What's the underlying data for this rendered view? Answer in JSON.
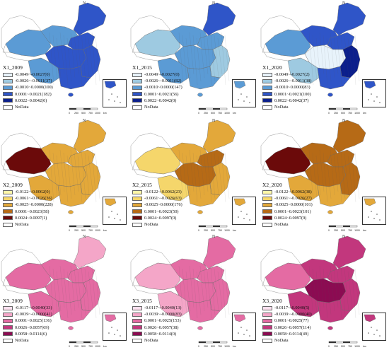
{
  "panels": [
    {
      "title": "X1_2009",
      "legend": [
        "-0.0049~-0.0027(0)",
        "-0.0026~-0.0011(37)",
        "-0.0010~0.0000(100)",
        "0.0001~0.0021(182)",
        "0.0022~0.0042(0)",
        "NoData"
      ],
      "colors": [
        "#e8f3fb",
        "#9ecae1",
        "#5b9bd5",
        "#2f55c8",
        "#0b1f8c",
        "#ffffff"
      ],
      "fill_levels": {
        "ne": 3,
        "north": 3,
        "east": 3,
        "south": 3,
        "central": 3,
        "sw": 2,
        "nw": 2,
        "inner": 2
      }
    },
    {
      "title": "X1_2015",
      "legend": [
        "-0.0049~-0.0027(0)",
        "-0.0026~-0.0011(82)",
        "-0.0010~0.0000(147)",
        "0.0001~0.0021(56)",
        "0.0022~0.0042(0)",
        "NoData"
      ],
      "colors": [
        "#e8f3fb",
        "#9ecae1",
        "#5b9bd5",
        "#2f55c8",
        "#0b1f8c",
        "#ffffff"
      ],
      "fill_levels": {
        "ne": 3,
        "north": 2,
        "east": 1,
        "south": 2,
        "central": 2,
        "sw": 2,
        "nw": 1,
        "inner": 2
      }
    },
    {
      "title": "X1_2020",
      "legend": [
        "-0.0049~-0.0027(2)",
        "-0.0026~-0.0011(38)",
        "-0.0010~0.0000(83)",
        "0.0001~0.0021(100)",
        "0.0022~0.0042(37)",
        "NoData"
      ],
      "colors": [
        "#e8f3fb",
        "#9ecae1",
        "#5b9bd5",
        "#2f55c8",
        "#0b1f8c",
        "#ffffff"
      ],
      "fill_levels": {
        "ne": 3,
        "north": 3,
        "east": 4,
        "south": 3,
        "central": 0,
        "sw": 1,
        "nw": 2,
        "inner": 3
      }
    },
    {
      "title": "X2_2009",
      "legend": [
        "-0.0122~-0.0062(0)",
        "-0.0061~-0.0026(36)",
        "-0.0025~0.0000(228)",
        "0.0001~0.0023(58)",
        "0.0024~0.0097(1)",
        "NoData"
      ],
      "colors": [
        "#fff7a8",
        "#f5d66b",
        "#e3a83a",
        "#b66a16",
        "#6b0a0a",
        "#ffffff"
      ],
      "fill_levels": {
        "ne": 2,
        "north": 2,
        "east": 2,
        "south": 2,
        "central": 2,
        "sw": 2,
        "nw": 4,
        "inner": 2
      }
    },
    {
      "title": "X2_2015",
      "legend": [
        "-0.0122~-0.0062(23)",
        "-0.0061~-0.0026(63)",
        "-0.0025~0.0000(176)",
        "0.0001~0.0023(50)",
        "0.0024~0.0097(0)",
        "NoData"
      ],
      "colors": [
        "#fff7a8",
        "#f5d66b",
        "#e3a83a",
        "#b66a16",
        "#6b0a0a",
        "#ffffff"
      ],
      "fill_levels": {
        "ne": 2,
        "north": 3,
        "east": 2,
        "south": 2,
        "central": 3,
        "sw": 1,
        "nw": 1,
        "inner": 2
      }
    },
    {
      "title": "X2_2020",
      "legend": [
        "-0.0122~-0.0062(38)",
        "-0.0061~-0.0026(27)",
        "-0.0025~0.0000(101)",
        "0.0001~0.0023(101)",
        "0.0024~0.0097(9)",
        "NoData"
      ],
      "colors": [
        "#fff7a8",
        "#f5d66b",
        "#e3a83a",
        "#b66a16",
        "#6b0a0a",
        "#ffffff"
      ],
      "fill_levels": {
        "ne": 3,
        "north": 3,
        "east": 3,
        "south": 2,
        "central": 3,
        "sw": 2,
        "nw": 4,
        "inner": 3
      }
    },
    {
      "title": "X3_2009",
      "legend": [
        "-0.0117~-0.0040(33)",
        "-0.0039~-0.0000(41)",
        "0.0001~0.0025(136)",
        "0.0026~0.0057(69)",
        "0.0058~0.0114(6)",
        "NoData"
      ],
      "colors": [
        "#fde0ef",
        "#f4a6c8",
        "#e46ba3",
        "#c2377d",
        "#8c0b52",
        "#ffffff"
      ],
      "fill_levels": {
        "ne": 1,
        "north": 2,
        "east": 2,
        "south": 2,
        "central": 2,
        "sw": 2,
        "nw": 2,
        "inner": 2
      }
    },
    {
      "title": "X3_2015",
      "legend": [
        "-0.0117~-0.0040(13)",
        "-0.0039~-0.0000(83)",
        "0.0001~0.0025(153)",
        "0.0026~0.0057(38)",
        "0.0058~0.0114(0)",
        "NoData"
      ],
      "colors": [
        "#fde0ef",
        "#f4a6c8",
        "#e46ba3",
        "#c2377d",
        "#8c0b52",
        "#ffffff"
      ],
      "fill_levels": {
        "ne": 2,
        "north": 2,
        "east": 2,
        "south": 2,
        "central": 2,
        "sw": 1,
        "nw": 1,
        "inner": 2
      }
    },
    {
      "title": "X3_2020",
      "legend": [
        "-0.0117~-0.0040(5)",
        "-0.0039~-0.0000(40)",
        "0.0001~0.0025(77)",
        "0.0026~0.0057(114)",
        "0.0058~0.0114(49)",
        "NoData"
      ],
      "colors": [
        "#fde0ef",
        "#f4a6c8",
        "#e46ba3",
        "#c2377d",
        "#8c0b52",
        "#ffffff"
      ],
      "fill_levels": {
        "ne": 3,
        "north": 3,
        "east": 3,
        "south": 3,
        "central": 4,
        "sw": 3,
        "nw": 2,
        "inner": 3
      }
    }
  ],
  "scale": {
    "ticks": [
      "0",
      "250",
      "500",
      "750",
      "1000"
    ],
    "unit": "km"
  },
  "north_label": "N"
}
